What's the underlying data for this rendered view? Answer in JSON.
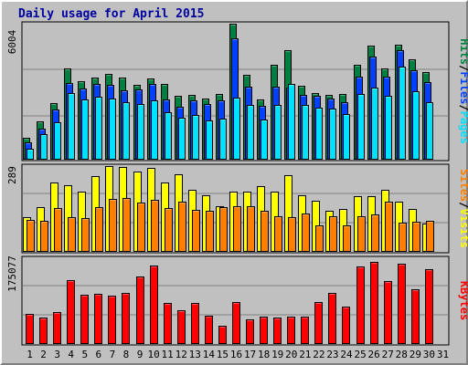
{
  "chart_data": {
    "type": "bar",
    "title": "Daily usage for April 2015",
    "days": [
      "1",
      "2",
      "3",
      "4",
      "5",
      "6",
      "7",
      "8",
      "9",
      "10",
      "11",
      "12",
      "13",
      "14",
      "15",
      "16",
      "17",
      "18",
      "19",
      "20",
      "21",
      "22",
      "23",
      "24",
      "25",
      "26",
      "27",
      "28",
      "29",
      "30",
      "31"
    ],
    "weekend_days": [
      "4",
      "5",
      "11",
      "12",
      "18",
      "19",
      "25",
      "26"
    ],
    "colors": {
      "hits": "#008040",
      "files": "#0040ff",
      "pages": "#00e0ff",
      "visits": "#ffff00",
      "sites": "#ff8000",
      "kbytes": "#ff0000",
      "weekend": "#00805c",
      "plot_bg": "#c0c0c0",
      "grid": "#808080"
    },
    "charts": [
      {
        "id": "hits",
        "ytick": "6004",
        "legend": [
          {
            "name": "Hits",
            "color": "#008040"
          },
          {
            "name": "Files",
            "color": "#0040ff"
          },
          {
            "name": "Pages",
            "color": "#00e0ff"
          }
        ],
        "ylim": [
          0,
          6004
        ],
        "series": [
          {
            "name": "Hits",
            "values": [
              1010,
              1740,
              2520,
              4040,
              3470,
              3650,
              3810,
              3630,
              3340,
              3610,
              3380,
              2860,
              2890,
              2710,
              2920,
              6004,
              3770,
              2700,
              4200,
              4850,
              3280,
              2960,
              2900,
              2920,
              4200,
              5050,
              4060,
              5070,
              4430,
              3890
            ]
          },
          {
            "name": "Files",
            "values": [
              800,
              1400,
              2230,
              3410,
              3170,
              3360,
              3340,
              3100,
              3130,
              3360,
              2670,
              2370,
              2630,
              2470,
              2660,
              5350,
              3250,
              2420,
              3230,
              3190,
              2880,
              2840,
              2720,
              2550,
              3700,
              4570,
              3680,
              4830,
              3950,
              3430
            ]
          },
          {
            "name": "Pages",
            "values": [
              540,
              1150,
              1690,
              2980,
              2670,
              2790,
              2730,
              2560,
              2500,
              2640,
              2110,
              1880,
              2000,
              1770,
              1850,
              2750,
              2450,
              1790,
              2460,
              3370,
              2430,
              2330,
              2300,
              2040,
              2910,
              3200,
              2830,
              4110,
              3030,
              2580
            ]
          }
        ]
      },
      {
        "id": "visits",
        "ytick": "289",
        "legend": [
          {
            "name": "Sites",
            "color": "#ff8000"
          },
          {
            "name": "Visits",
            "color": "#ffff00"
          }
        ],
        "ylim": [
          0,
          289
        ],
        "series": [
          {
            "name": "Visits",
            "values": [
              118,
              152,
              234,
              225,
              204,
              255,
              289,
              287,
              271,
              284,
              233,
              262,
              211,
              192,
              154,
              204,
              205,
              221,
              205,
              258,
              191,
              173,
              139,
              147,
              188,
              190,
              210,
              170,
              146,
              98
            ]
          },
          {
            "name": "Sites",
            "values": [
              108,
              106,
              150,
              119,
              115,
              151,
              179,
              183,
              166,
              175,
              149,
              170,
              143,
              141,
              152,
              156,
              156,
              139,
              122,
              120,
              131,
              92,
              122,
              92,
              122,
              128,
              171,
              101,
              104,
              107
            ]
          }
        ]
      },
      {
        "id": "kbytes",
        "ytick": "175077",
        "legend": [
          {
            "name": "KBytes",
            "color": "#ff0000"
          }
        ],
        "ylim": [
          0,
          175077
        ],
        "series": [
          {
            "name": "KBytes",
            "values": [
              62700,
              55000,
              66900,
              130500,
              100800,
              102900,
              99200,
              104300,
              138800,
              160500,
              85000,
              69700,
              84600,
              59800,
              38500,
              87300,
              50700,
              57900,
              55200,
              57600,
              57600,
              87300,
              104700,
              77000,
              158800,
              167100,
              128200,
              163100,
              112500,
              153400
            ]
          }
        ]
      }
    ]
  }
}
